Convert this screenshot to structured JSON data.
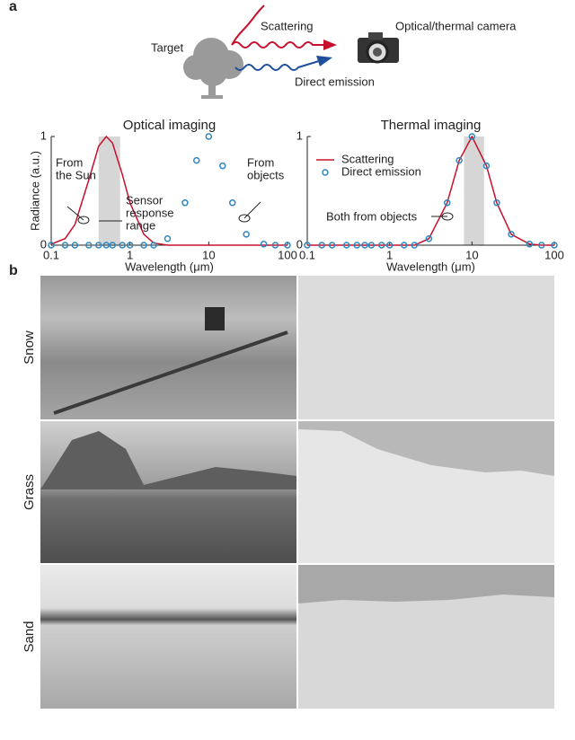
{
  "panel_labels": [
    "a",
    "b"
  ],
  "diagram": {
    "target": "Target",
    "scattering": "Scattering",
    "camera": "Optical/thermal camera",
    "direct": "Direct emission"
  },
  "chart_data": [
    {
      "type": "line",
      "title": "Optical imaging",
      "xlabel": "Wavelength (μm)",
      "ylabel": "Radiance (a.u.)",
      "xscale": "log",
      "xlim": [
        0.1,
        100
      ],
      "ylim": [
        0,
        1
      ],
      "xticks": [
        0.1,
        1,
        10,
        100
      ],
      "yticks": [
        0,
        1
      ],
      "shaded_band": [
        0.4,
        0.75
      ],
      "x": [
        0.1,
        0.15,
        0.2,
        0.3,
        0.4,
        0.5,
        0.6,
        0.8,
        1,
        1.5,
        2,
        3,
        5,
        7,
        10,
        15,
        20,
        30,
        50,
        70,
        100
      ],
      "series": [
        {
          "name": "Scattering",
          "color": "#c8102e",
          "style": "line",
          "values": [
            0.01,
            0.06,
            0.19,
            0.6,
            0.91,
            1,
            0.94,
            0.65,
            0.39,
            0.1,
            0.02,
            0,
            0,
            0,
            0,
            0,
            0,
            0,
            0,
            0,
            0
          ]
        },
        {
          "name": "Direct emission",
          "color": "#2e86c1",
          "style": "markers",
          "values": [
            0,
            0,
            0,
            0,
            0,
            0,
            0,
            0,
            0,
            0,
            0,
            0.06,
            0.39,
            0.78,
            1,
            0.73,
            0.39,
            0.1,
            0.01,
            0,
            0
          ]
        }
      ],
      "annotations": [
        {
          "lines": [
            "From",
            "the Sun"
          ]
        },
        {
          "lines": [
            "Sensor",
            "response",
            "range"
          ]
        },
        {
          "lines": [
            "From",
            "objects"
          ]
        }
      ]
    },
    {
      "type": "line",
      "title": "Thermal imaging",
      "xlabel": "Wavelength (μm)",
      "xscale": "log",
      "xlim": [
        0.1,
        100
      ],
      "ylim": [
        0,
        1
      ],
      "xticks": [
        0.1,
        1,
        10,
        100
      ],
      "yticks": [
        0,
        1
      ],
      "shaded_band": [
        8,
        14
      ],
      "legend": "upper left",
      "x": [
        0.1,
        0.15,
        0.2,
        0.3,
        0.4,
        0.5,
        0.6,
        0.8,
        1,
        1.5,
        2,
        3,
        5,
        7,
        10,
        15,
        20,
        30,
        50,
        70,
        100
      ],
      "series": [
        {
          "name": "Scattering",
          "color": "#c8102e",
          "style": "line",
          "values": [
            0,
            0,
            0,
            0,
            0,
            0,
            0,
            0,
            0,
            0,
            0,
            0.06,
            0.39,
            0.78,
            1,
            0.73,
            0.39,
            0.1,
            0.01,
            0,
            0
          ]
        },
        {
          "name": "Direct emission",
          "color": "#2e86c1",
          "style": "markers",
          "values": [
            0,
            0,
            0,
            0,
            0,
            0,
            0,
            0,
            0,
            0,
            0,
            0.06,
            0.39,
            0.78,
            1,
            0.73,
            0.39,
            0.1,
            0.01,
            0,
            0
          ]
        }
      ],
      "annotations": [
        {
          "lines": [
            "Both from objects"
          ]
        }
      ]
    }
  ],
  "scenes": [
    "Snow",
    "Grass",
    "Sand"
  ]
}
